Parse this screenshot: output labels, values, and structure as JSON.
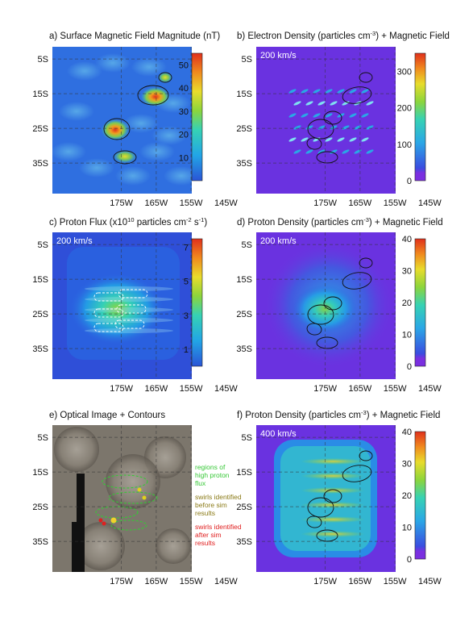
{
  "figure": {
    "panels": [
      {
        "id": "a",
        "title_parts": [
          "a) Surface Magnetic Field Magnitude (nT)"
        ],
        "speed_label": "",
        "background": "magnetic",
        "colorbar": {
          "min": 0,
          "max": 55,
          "ticks": [
            "10",
            "20",
            "30",
            "40",
            "50"
          ],
          "tick_values": [
            10,
            20,
            30,
            40,
            50
          ],
          "bottom_color": "#2a54d6"
        }
      },
      {
        "id": "b",
        "title_parts": [
          "b) Electron Density (particles cm",
          "-3",
          ") + Magnetic Field"
        ],
        "speed_label": "200 km/s",
        "background": "electron",
        "colorbar": {
          "min": 0,
          "max": 350,
          "ticks": [
            "0",
            "100",
            "200",
            "300"
          ],
          "tick_values": [
            0,
            100,
            200,
            300
          ],
          "bottom_color": "#7a2fe0"
        }
      },
      {
        "id": "c",
        "title_parts": [
          "c) Proton Flux (x10",
          "10",
          " particles cm",
          "-2",
          " s",
          "-1",
          ")"
        ],
        "speed_label": "200 km/s",
        "background": "flux",
        "colorbar": {
          "min": 0,
          "max": 7.5,
          "ticks": [
            "1",
            "3",
            "5",
            "7"
          ],
          "tick_values": [
            1,
            3,
            5,
            7
          ],
          "bottom_color": "#2a54d6"
        }
      },
      {
        "id": "d",
        "title_parts": [
          "d) Proton Density (particles cm",
          "-3",
          ") + Magnetic Field"
        ],
        "speed_label": "200 km/s",
        "background": "proton200",
        "colorbar": {
          "min": 0,
          "max": 40,
          "ticks": [
            "0",
            "10",
            "20",
            "30",
            "40"
          ],
          "tick_values": [
            0,
            10,
            20,
            30,
            40
          ],
          "bottom_color": "#7a2fe0"
        }
      },
      {
        "id": "e",
        "title_parts": [
          "e) Optical Image + Contours"
        ],
        "speed_label": "",
        "background": "optical",
        "legend": [
          {
            "lines": [
              "regions of",
              "high proton",
              "flux"
            ],
            "color": "#37c837"
          },
          {
            "lines": [
              "swirls identified",
              "before sim",
              "results"
            ],
            "color": "#8a7a16"
          },
          {
            "lines": [
              "swirls identified",
              "after sim",
              "results"
            ],
            "color": "#e02020"
          }
        ]
      },
      {
        "id": "f",
        "title_parts": [
          "f) Proton Density (particles cm",
          "-3",
          ") + Magnetic Field"
        ],
        "speed_label": "400 km/s",
        "background": "proton400",
        "colorbar": {
          "min": 0,
          "max": 40,
          "ticks": [
            "0",
            "10",
            "20",
            "30",
            "40"
          ],
          "tick_values": [
            0,
            10,
            20,
            30,
            40
          ],
          "bottom_color": "#7a2fe0"
        }
      }
    ],
    "axes": {
      "x_ticks": [
        "175W",
        "165W",
        "155W",
        "145W"
      ],
      "y_ticks": [
        "5S",
        "15S",
        "25S",
        "35S"
      ]
    },
    "colors": {
      "field_contour": "#111111",
      "flux_region": "#37c837",
      "swirl_before": "#e0d21a",
      "swirl_after": "#e02020",
      "speed_label": "#ffffff"
    }
  },
  "chart_data": [
    {
      "panel": "a",
      "type": "heatmap",
      "title": "a) Surface Magnetic Field Magnitude (nT)",
      "unit": "nT",
      "x_ticks": [
        "175W",
        "165W",
        "155W",
        "145W"
      ],
      "y_ticks": [
        "5S",
        "15S",
        "25S",
        "35S"
      ],
      "colorbar_range": [
        0,
        55
      ],
      "peaks": [
        {
          "lon": "156W",
          "lat": "14S",
          "value": 50
        },
        {
          "lon": "165W",
          "lat": "22S",
          "value": 45
        },
        {
          "lon": "163W",
          "lat": "28S",
          "value": 30
        }
      ]
    },
    {
      "panel": "b",
      "type": "heatmap",
      "title": "b) Electron Density (particles cm-3) + Magnetic Field",
      "unit": "particles cm-3",
      "speed": "200 km/s",
      "colorbar_range": [
        0,
        350
      ]
    },
    {
      "panel": "c",
      "type": "heatmap",
      "title": "c) Proton Flux (x10^10 particles cm-2 s-1)",
      "unit": "x10^10 particles cm-2 s-1",
      "speed": "200 km/s",
      "colorbar_range": [
        0,
        7.5
      ]
    },
    {
      "panel": "d",
      "type": "heatmap",
      "title": "d) Proton Density (particles cm-3) + Magnetic Field",
      "unit": "particles cm-3",
      "speed": "200 km/s",
      "colorbar_range": [
        0,
        40
      ]
    },
    {
      "panel": "e",
      "type": "heatmap",
      "title": "e) Optical Image + Contours"
    },
    {
      "panel": "f",
      "type": "heatmap",
      "title": "f) Proton Density (particles cm-3) + Magnetic Field",
      "unit": "particles cm-3",
      "speed": "400 km/s",
      "colorbar_range": [
        0,
        40
      ]
    }
  ]
}
